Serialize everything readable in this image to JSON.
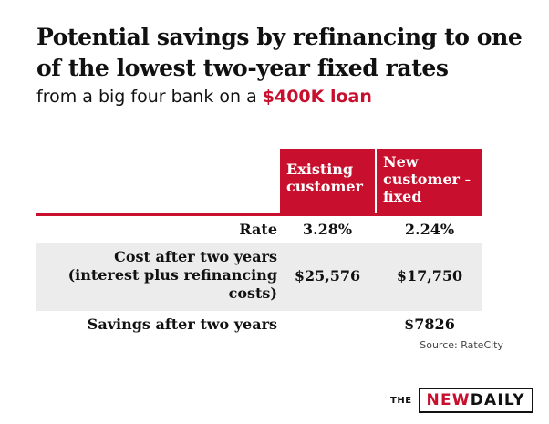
{
  "chart_data": {
    "type": "table",
    "title": "Potential savings by refinancing to one of the lowest two-year fixed rates",
    "subtitle_prefix": "from a big four bank on a ",
    "subtitle_highlight": "$400K loan",
    "columns": [
      "Existing customer",
      "New customer - fixed"
    ],
    "rows": [
      {
        "label": "Rate",
        "values": [
          "3.28%",
          "2.24%"
        ]
      },
      {
        "label": "Cost after two years (interest plus refinancing costs)",
        "values": [
          "$25,576",
          "$17,750"
        ]
      },
      {
        "label": "Savings after two years",
        "values": [
          "",
          "$7826"
        ]
      }
    ],
    "source": "Source: RateCity"
  },
  "branding": {
    "the": "THE",
    "new": "NEW",
    "daily": "DAILY"
  },
  "colors": {
    "accent": "#c8102e",
    "row_shade": "#ececec",
    "text": "#111111"
  }
}
